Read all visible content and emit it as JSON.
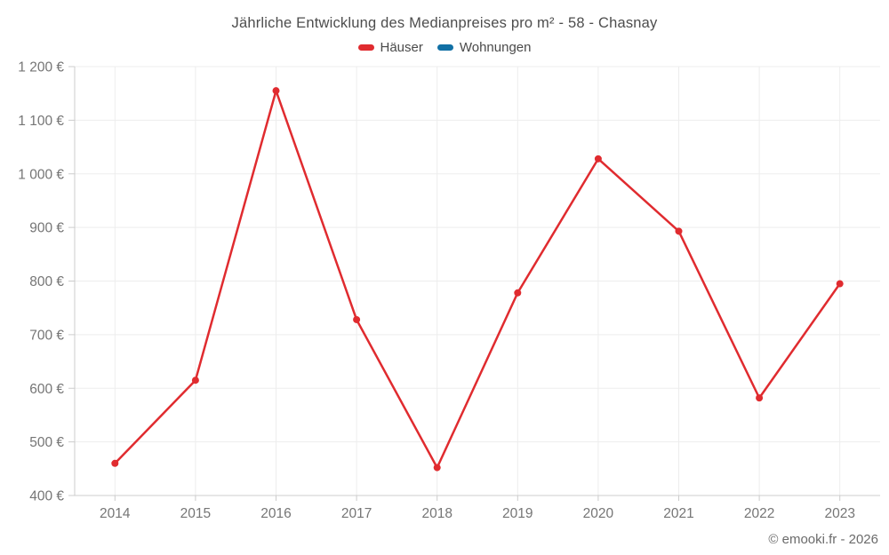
{
  "header": {
    "title": "Jährliche Entwicklung des Medianpreises pro m² - 58 - Chasnay"
  },
  "footer": {
    "credit": "© emooki.fr - 2026"
  },
  "colors": {
    "haeuser_red": "#e02b2f",
    "wohnungen_blue": "#1170a5",
    "gridline": "#ededed",
    "axis_line": "#cccccc",
    "tick_mark": "#cccccc",
    "tick_label": "#757575"
  },
  "chart_data": {
    "type": "line",
    "title": "Jährliche Entwicklung des Medianpreises pro m² - 58 - Chasnay",
    "categories": [
      "2014",
      "2015",
      "2016",
      "2017",
      "2018",
      "2019",
      "2020",
      "2021",
      "2022",
      "2023"
    ],
    "series": [
      {
        "name": "Häuser",
        "color": "#e02b2f",
        "values": [
          460,
          615,
          1155,
          728,
          452,
          778,
          1028,
          893,
          582,
          795
        ]
      },
      {
        "name": "Wohnungen",
        "color": "#1170a5",
        "values": []
      }
    ],
    "xlabel": "",
    "ylabel": "",
    "ylim": [
      400,
      1200
    ],
    "ytick_step": 100,
    "ytick_suffix": " €",
    "grid": true,
    "legend_position": "top",
    "marker_radius": 4,
    "line_width": 2.5
  }
}
